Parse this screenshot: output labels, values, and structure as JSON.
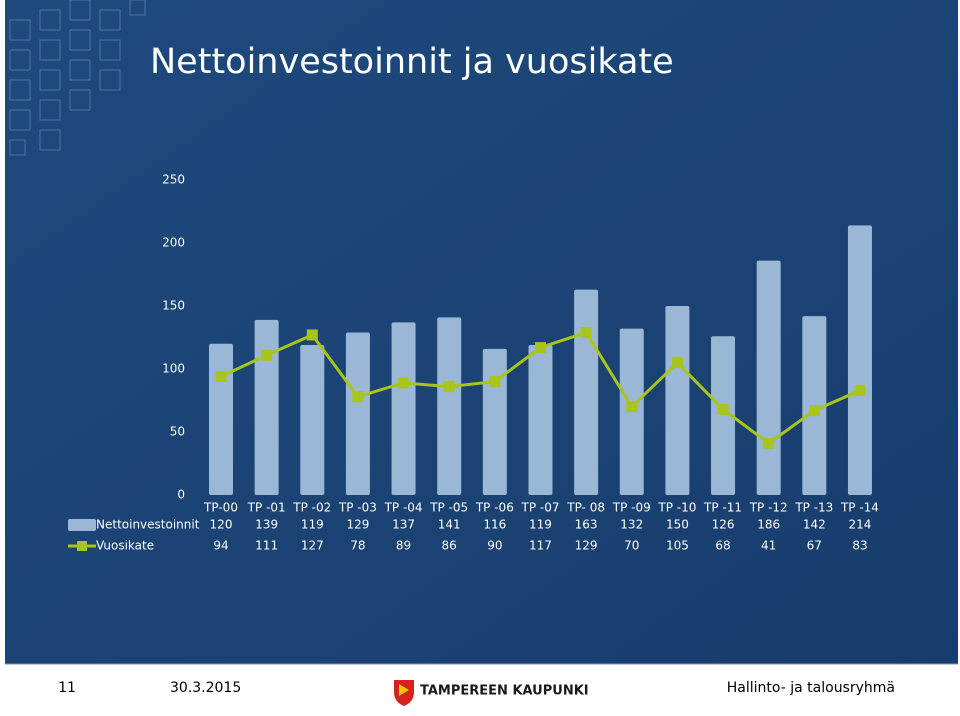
{
  "chart_data": {
    "type": "bar",
    "title": "Nettoinvestoinnit ja vuosikate",
    "categories": [
      "TP-00",
      "TP -01",
      "TP -02",
      "TP -03",
      "TP -04",
      "TP -05",
      "TP -06",
      "TP -07",
      "TP- 08",
      "TP -09",
      "TP -10",
      "TP -11",
      "TP -12",
      "TP -13",
      "TP -14"
    ],
    "series": [
      {
        "name": "Nettoinvestoinnit",
        "type": "bar",
        "color": "#9bb7d6",
        "values": [
          120,
          139,
          119,
          129,
          137,
          141,
          116,
          119,
          163,
          132,
          150,
          126,
          186,
          142,
          214
        ]
      },
      {
        "name": "Vuosikate",
        "type": "line",
        "color": "#a9c41b",
        "values": [
          94,
          111,
          127,
          78,
          89,
          86,
          90,
          117,
          129,
          70,
          105,
          68,
          41,
          67,
          83
        ]
      }
    ],
    "ylim": [
      0,
      250
    ],
    "yticks": [
      0,
      50,
      100,
      150,
      200,
      250
    ],
    "grid": false
  },
  "footer": {
    "page": "11",
    "date": "30.3.2015",
    "org": "TAMPEREEN KAUPUNKI",
    "unit": "Hallinto- ja talousryhmä"
  }
}
